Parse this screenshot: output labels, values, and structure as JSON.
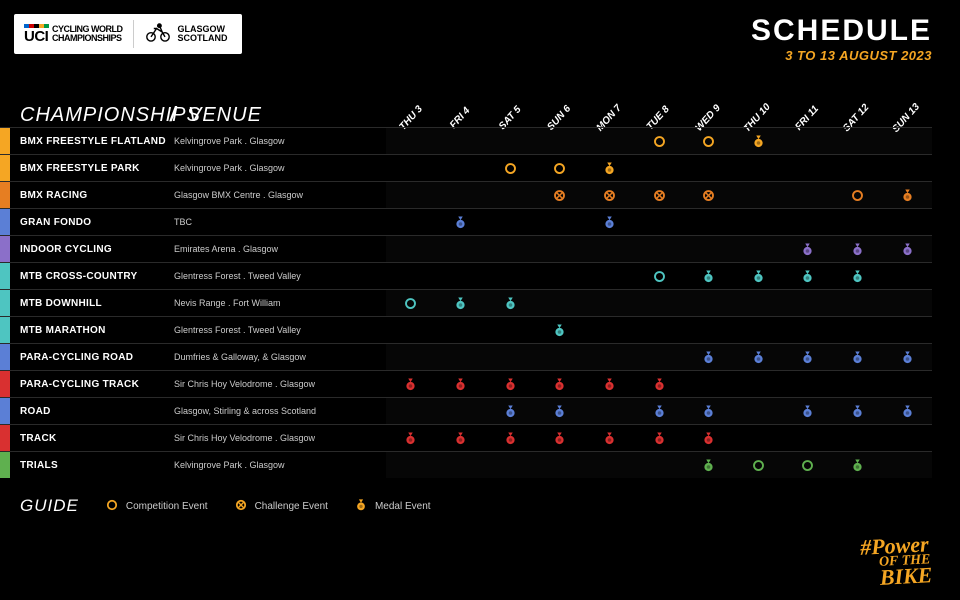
{
  "header": {
    "uci_label": "UCI",
    "uci_sub1": "CYCLING WORLD",
    "uci_sub2": "CHAMPIONSHIPS",
    "glasgow1": "GLASGOW",
    "glasgow2": "SCOTLAND",
    "title": "SCHEDULE",
    "subtitle": "3 TO 13 AUGUST 2023",
    "uci_stripe_colors": [
      "#0066cc",
      "#cc0000",
      "#000000",
      "#f5a623",
      "#009944"
    ]
  },
  "columns": {
    "championships": "CHAMPIONSHIPS",
    "venue": "VENUE",
    "slash": "/"
  },
  "days": [
    "THU 3",
    "FRI 4",
    "SAT 5",
    "SUN 6",
    "MON 7",
    "TUE 8",
    "WED 9",
    "THU 10",
    "FRI 11",
    "SAT 12",
    "SUN 13"
  ],
  "event_types": {
    "C": "competition",
    "X": "challenge",
    "M": "medal"
  },
  "colors": {
    "yellow": "#f5a623",
    "orange": "#e67e22",
    "blue": "#5b7fd6",
    "teal": "#4ec5c1",
    "red": "#d93030",
    "green": "#5fb04f",
    "purple": "#8b6fc9",
    "accent": "#f5a623",
    "bg": "#000000",
    "row_border": "#2a2a2a",
    "text_muted": "#cccccc"
  },
  "guide": {
    "title": "GUIDE",
    "competition": "Competition Event",
    "challenge": "Challenge Event",
    "medal": "Medal Event",
    "icon_color": "#f5a623"
  },
  "footer": {
    "tag1": "#Power",
    "tag2": "OF THE",
    "tag3": "BIKE"
  },
  "rows": [
    {
      "name": "BMX FREESTYLE FLATLAND",
      "venue": "Kelvingrove Park . Glasgow",
      "color": "yellow",
      "events": [
        "",
        "",
        "",
        "",
        "",
        "C",
        "C",
        "M",
        "",
        "",
        ""
      ]
    },
    {
      "name": "BMX FREESTYLE PARK",
      "venue": "Kelvingrove Park . Glasgow",
      "color": "yellow",
      "events": [
        "",
        "",
        "C",
        "C",
        "M",
        "",
        "",
        "",
        "",
        "",
        ""
      ]
    },
    {
      "name": "BMX RACING",
      "venue": "Glasgow BMX Centre . Glasgow",
      "color": "orange",
      "events": [
        "",
        "",
        "",
        "X",
        "X",
        "X",
        "X",
        "",
        "",
        "C",
        "M"
      ]
    },
    {
      "name": "GRAN FONDO",
      "venue": "TBC",
      "color": "blue",
      "events": [
        "",
        "M",
        "",
        "",
        "M",
        "",
        "",
        "",
        "",
        "",
        ""
      ]
    },
    {
      "name": "INDOOR CYCLING",
      "venue": "Emirates Arena . Glasgow",
      "color": "purple",
      "events": [
        "",
        "",
        "",
        "",
        "",
        "",
        "",
        "",
        "M",
        "M",
        "M"
      ]
    },
    {
      "name": "MTB CROSS-COUNTRY",
      "venue": "Glentress Forest . Tweed Valley",
      "color": "teal",
      "events": [
        "",
        "",
        "",
        "",
        "",
        "C",
        "M",
        "M",
        "M",
        "M",
        ""
      ]
    },
    {
      "name": "MTB DOWNHILL",
      "venue": "Nevis Range . Fort William",
      "color": "teal",
      "events": [
        "C",
        "M",
        "M",
        "",
        "",
        "",
        "",
        "",
        "",
        "",
        ""
      ]
    },
    {
      "name": "MTB MARATHON",
      "venue": "Glentress Forest . Tweed Valley",
      "color": "teal",
      "events": [
        "",
        "",
        "",
        "M",
        "",
        "",
        "",
        "",
        "",
        "",
        ""
      ]
    },
    {
      "name": "PARA-CYCLING ROAD",
      "venue": "Dumfries & Galloway, & Glasgow",
      "color": "blue",
      "events": [
        "",
        "",
        "",
        "",
        "",
        "",
        "M",
        "M",
        "M",
        "M",
        "M"
      ]
    },
    {
      "name": "PARA-CYCLING TRACK",
      "venue": "Sir Chris Hoy Velodrome . Glasgow",
      "color": "red",
      "events": [
        "M",
        "M",
        "M",
        "M",
        "M",
        "M",
        "",
        "",
        "",
        "",
        ""
      ]
    },
    {
      "name": "ROAD",
      "venue": "Glasgow, Stirling & across Scotland",
      "color": "blue",
      "events": [
        "",
        "",
        "M",
        "M",
        "",
        "M",
        "M",
        "",
        "M",
        "M",
        "M"
      ]
    },
    {
      "name": "TRACK",
      "venue": "Sir Chris Hoy Velodrome . Glasgow",
      "color": "red",
      "events": [
        "M",
        "M",
        "M",
        "M",
        "M",
        "M",
        "M",
        "",
        "",
        "",
        ""
      ]
    },
    {
      "name": "TRIALS",
      "venue": "Kelvingrove Park . Glasgow",
      "color": "green",
      "events": [
        "",
        "",
        "",
        "",
        "",
        "",
        "M",
        "C",
        "C",
        "M",
        ""
      ]
    }
  ]
}
